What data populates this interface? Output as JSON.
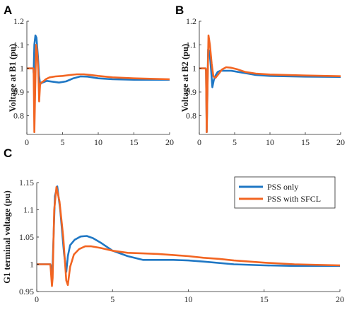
{
  "chart_data": [
    {
      "panel": "A",
      "type": "line",
      "ylabel": "Voltage at B1 (pu)",
      "xlim": [
        0,
        20
      ],
      "ylim": [
        0.72,
        1.2
      ],
      "xticks": [
        "0",
        "5",
        "10",
        "15",
        "20"
      ],
      "yticks": [
        "0.8",
        "0.9",
        "1",
        "1.1",
        "1.2"
      ],
      "series": [
        {
          "color": "#1f77c4",
          "x": [
            0,
            0.9,
            0.95,
            1.05,
            1.2,
            1.35,
            1.55,
            1.7,
            1.85,
            2.2,
            2.8,
            3.5,
            4.5,
            5.5,
            6.5,
            7.5,
            8.5,
            10,
            12,
            15,
            20
          ],
          "y": [
            1.0,
            1.0,
            0.98,
            1.1,
            1.14,
            1.13,
            1.05,
            0.97,
            0.935,
            0.94,
            0.947,
            0.944,
            0.94,
            0.945,
            0.958,
            0.966,
            0.965,
            0.958,
            0.954,
            0.952,
            0.952
          ]
        },
        {
          "color": "#f26522",
          "x": [
            0,
            0.9,
            0.95,
            1.05,
            1.3,
            1.45,
            1.6,
            1.72,
            1.85,
            2.0,
            2.3,
            2.7,
            3.2,
            4,
            5,
            6,
            7,
            8,
            9,
            10,
            12,
            15,
            20
          ],
          "y": [
            1.0,
            1.0,
            0.99,
            0.73,
            1.1,
            1.07,
            0.99,
            0.86,
            0.93,
            0.94,
            0.945,
            0.955,
            0.962,
            0.966,
            0.968,
            0.972,
            0.975,
            0.975,
            0.972,
            0.968,
            0.962,
            0.958,
            0.954
          ]
        }
      ]
    },
    {
      "panel": "B",
      "type": "line",
      "ylabel": "Voltage at B2 (pu)",
      "xlim": [
        0,
        20
      ],
      "ylim": [
        0.72,
        1.2
      ],
      "xticks": [
        "0",
        "5",
        "10",
        "15",
        "20"
      ],
      "yticks": [
        "0.8",
        "0.9",
        "1",
        "1.1",
        "1.2"
      ],
      "series": [
        {
          "color": "#1f77c4",
          "x": [
            0,
            0.9,
            0.95,
            1.05,
            1.25,
            1.45,
            1.65,
            1.85,
            2.05,
            2.3,
            2.6,
            3,
            3.5,
            4.5,
            5.5,
            6.5,
            8,
            10,
            15,
            20
          ],
          "y": [
            1.0,
            1.0,
            0.99,
            0.73,
            1.08,
            1.07,
            1.0,
            0.92,
            0.95,
            0.97,
            0.985,
            0.99,
            0.99,
            0.99,
            0.985,
            0.98,
            0.972,
            0.968,
            0.965,
            0.964
          ]
        },
        {
          "color": "#f26522",
          "x": [
            0,
            0.9,
            0.95,
            1.05,
            1.3,
            1.5,
            1.75,
            2.0,
            2.3,
            2.7,
            3.2,
            3.8,
            4.5,
            5.5,
            6.5,
            8,
            10,
            15,
            20
          ],
          "y": [
            1.0,
            1.0,
            0.99,
            0.73,
            1.14,
            1.1,
            1.02,
            0.965,
            0.96,
            0.975,
            0.995,
            1.005,
            1.003,
            0.995,
            0.985,
            0.978,
            0.974,
            0.97,
            0.967
          ]
        }
      ]
    },
    {
      "panel": "C",
      "type": "line",
      "ylabel": "G1 terminal voltage (pu)",
      "xlim": [
        0,
        20
      ],
      "ylim": [
        0.95,
        1.15
      ],
      "xticks": [
        "0",
        "5",
        "10",
        "15",
        "20"
      ],
      "yticks": [
        "0.95",
        "1",
        "1.05",
        "1.1",
        "1.15"
      ],
      "legend": {
        "position": "top-right",
        "entries": [
          "PSS only",
          "PSS with SFCL"
        ]
      },
      "series": [
        {
          "name": "PSS only",
          "color": "#1f77c4",
          "x": [
            0,
            0.9,
            1.0,
            1.05,
            1.2,
            1.35,
            1.55,
            1.8,
            1.95,
            2.05,
            2.2,
            2.5,
            2.9,
            3.3,
            3.7,
            4.2,
            5,
            6,
            7,
            8,
            9,
            10,
            11,
            13,
            15,
            17,
            20
          ],
          "y": [
            1.0,
            1.0,
            0.985,
            1.0,
            1.125,
            1.143,
            1.1,
            1.02,
            0.986,
            1.015,
            1.035,
            1.045,
            1.051,
            1.052,
            1.048,
            1.04,
            1.025,
            1.015,
            1.008,
            1.008,
            1.008,
            1.007,
            1.005,
            1.0,
            0.998,
            0.997,
            0.997
          ]
        },
        {
          "name": "PSS with SFCL",
          "color": "#f26522",
          "x": [
            0,
            0.9,
            1.0,
            1.05,
            1.15,
            1.3,
            1.5,
            1.75,
            1.95,
            2.05,
            2.2,
            2.45,
            2.8,
            3.2,
            3.6,
            4.2,
            5,
            6,
            7,
            8,
            9,
            10,
            11,
            12,
            13,
            15,
            17,
            20
          ],
          "y": [
            1.0,
            1.0,
            0.96,
            0.975,
            1.1,
            1.142,
            1.115,
            1.05,
            0.97,
            0.962,
            0.995,
            1.018,
            1.028,
            1.033,
            1.033,
            1.03,
            1.025,
            1.021,
            1.02,
            1.019,
            1.017,
            1.015,
            1.012,
            1.01,
            1.007,
            1.003,
            1.0,
            0.998
          ]
        }
      ]
    }
  ]
}
